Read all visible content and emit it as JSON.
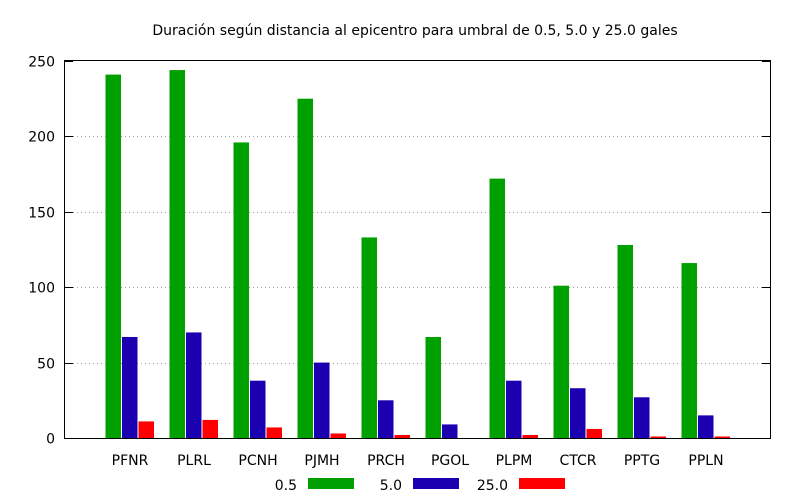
{
  "chart_data": {
    "type": "bar",
    "title": "Duración según distancia al epicentro para umbral de 0.5, 5.0 y 25.0 gales",
    "xlabel": "",
    "ylabel": "",
    "ylim": [
      0,
      250
    ],
    "yticks": [
      "0",
      "50",
      "100",
      "150",
      "200",
      "250"
    ],
    "grid": true,
    "legend_position": "bottom",
    "categories": [
      "PFNR",
      "PLRL",
      "PCNH",
      "PJMH",
      "PRCH",
      "PGOL",
      "PLPM",
      "CTCR",
      "PPTG",
      "PPLN"
    ],
    "series": [
      {
        "name": "0.5",
        "color": "#00a000",
        "values": [
          241,
          244,
          196,
          225,
          133,
          67,
          172,
          101,
          128,
          116
        ]
      },
      {
        "name": "5.0",
        "color": "#1a00b0",
        "values": [
          67,
          70,
          38,
          50,
          25,
          9,
          38,
          33,
          27,
          15
        ]
      },
      {
        "name": "25.0",
        "color": "#ff0000",
        "values": [
          11,
          12,
          7,
          3,
          2,
          0,
          2,
          6,
          1,
          1
        ]
      }
    ]
  }
}
